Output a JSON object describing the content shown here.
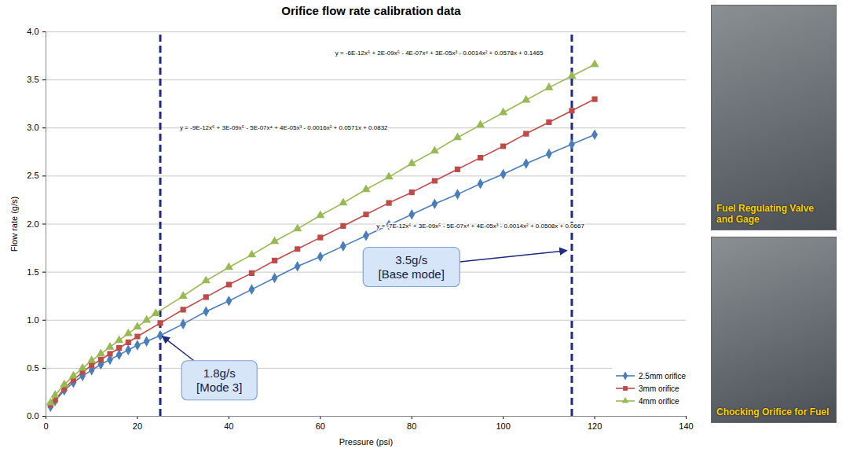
{
  "chart_data": {
    "type": "line",
    "title": "Orifice flow rate calibration data",
    "x_label": "Pressure (psi)",
    "y_label": "Flow rate (g/s)",
    "xlim": [
      0,
      140
    ],
    "xticks": [
      0,
      20,
      40,
      60,
      80,
      100,
      120,
      140
    ],
    "ylim": [
      0,
      4
    ],
    "yticks": [
      {
        "value": 0,
        "label": "0.0"
      },
      {
        "value": 0.5,
        "label": "0.5"
      },
      {
        "value": 1,
        "label": "1.0"
      },
      {
        "value": 1.5,
        "label": "1.5"
      },
      {
        "value": 2,
        "label": "2.0"
      },
      {
        "value": 2.5,
        "label": "2.5"
      },
      {
        "value": 3,
        "label": "3.0"
      },
      {
        "value": 3.5,
        "label": "3.5"
      },
      {
        "value": 4,
        "label": "4.0"
      }
    ],
    "grid": true,
    "legend": "bottom-right",
    "series": [
      {
        "name": "2.5mm orifice",
        "color": "#4a7ebb",
        "marker": "diamond",
        "x": [
          1,
          2,
          4,
          6,
          8,
          10,
          12,
          14,
          16,
          18,
          20,
          22,
          25,
          30,
          35,
          40,
          45,
          50,
          55,
          60,
          65,
          70,
          75,
          80,
          85,
          90,
          95,
          100,
          105,
          110,
          115,
          120
        ],
        "values": [
          0.1,
          0.16,
          0.27,
          0.35,
          0.42,
          0.48,
          0.54,
          0.59,
          0.64,
          0.69,
          0.74,
          0.78,
          0.84,
          0.96,
          1.09,
          1.2,
          1.32,
          1.44,
          1.56,
          1.66,
          1.77,
          1.88,
          1.99,
          2.1,
          2.21,
          2.31,
          2.42,
          2.52,
          2.63,
          2.73,
          2.83,
          2.93
        ]
      },
      {
        "name": "3mm orifice",
        "color": "#be4b48",
        "marker": "square",
        "x": [
          1,
          2,
          4,
          6,
          8,
          10,
          12,
          14,
          16,
          18,
          20,
          25,
          30,
          35,
          40,
          45,
          50,
          55,
          60,
          65,
          70,
          75,
          80,
          85,
          90,
          95,
          100,
          105,
          110,
          115,
          120
        ],
        "values": [
          0.12,
          0.17,
          0.29,
          0.38,
          0.46,
          0.53,
          0.59,
          0.65,
          0.71,
          0.77,
          0.83,
          0.97,
          1.11,
          1.24,
          1.37,
          1.49,
          1.62,
          1.74,
          1.86,
          1.98,
          2.1,
          2.22,
          2.33,
          2.45,
          2.57,
          2.69,
          2.81,
          2.94,
          3.06,
          3.18,
          3.3
        ]
      },
      {
        "name": "4mm orifice",
        "color": "#98b954",
        "marker": "triangle",
        "x": [
          1,
          2,
          4,
          6,
          8,
          10,
          12,
          14,
          16,
          18,
          20,
          22,
          24,
          30,
          35,
          40,
          45,
          50,
          55,
          60,
          65,
          70,
          75,
          80,
          85,
          90,
          95,
          100,
          105,
          110,
          115,
          120
        ],
        "values": [
          0.14,
          0.22,
          0.33,
          0.42,
          0.5,
          0.58,
          0.65,
          0.72,
          0.79,
          0.86,
          0.93,
          1.0,
          1.07,
          1.25,
          1.41,
          1.55,
          1.68,
          1.82,
          1.95,
          2.09,
          2.22,
          2.36,
          2.49,
          2.63,
          2.76,
          2.9,
          3.03,
          3.16,
          3.29,
          3.42,
          3.54,
          3.66
        ]
      }
    ],
    "reference_lines": [
      25,
      115
    ],
    "equations": [
      {
        "text": "y = -6E-12x⁶ + 2E-09x⁵ - 4E-07x⁴ + 3E-05x³ - 0.0014x² + 0.0578x + 0.1465",
        "x": 86,
        "y": 3.78
      },
      {
        "text": "y = -9E-12x⁶ + 3E-09x⁵ - 5E-07x⁴ + 4E-05x³ - 0.0016x² + 0.0571x + 0.0832",
        "x": 52,
        "y": 3.0
      },
      {
        "text": "y = -7E-12x⁶ + 3E-09x⁵ - 5E-07x⁴ + 4E-05x³ - 0.0014x² + 0.0508x + 0.0667",
        "x": 95,
        "y": 1.98
      }
    ],
    "annotations": [
      {
        "text": [
          "1.8g/s",
          "[Mode 3]"
        ],
        "x": 38,
        "y": 0.37,
        "arrow_to": [
          25.5,
          0.83
        ]
      },
      {
        "text": [
          "3.5g/s",
          "[Base mode]"
        ],
        "x": 80,
        "y": 1.55,
        "arrow_to": [
          114,
          1.72
        ]
      }
    ]
  },
  "photos": [
    "Fuel Regulating Valve and Gage",
    "Chocking Orifice for Fuel"
  ]
}
